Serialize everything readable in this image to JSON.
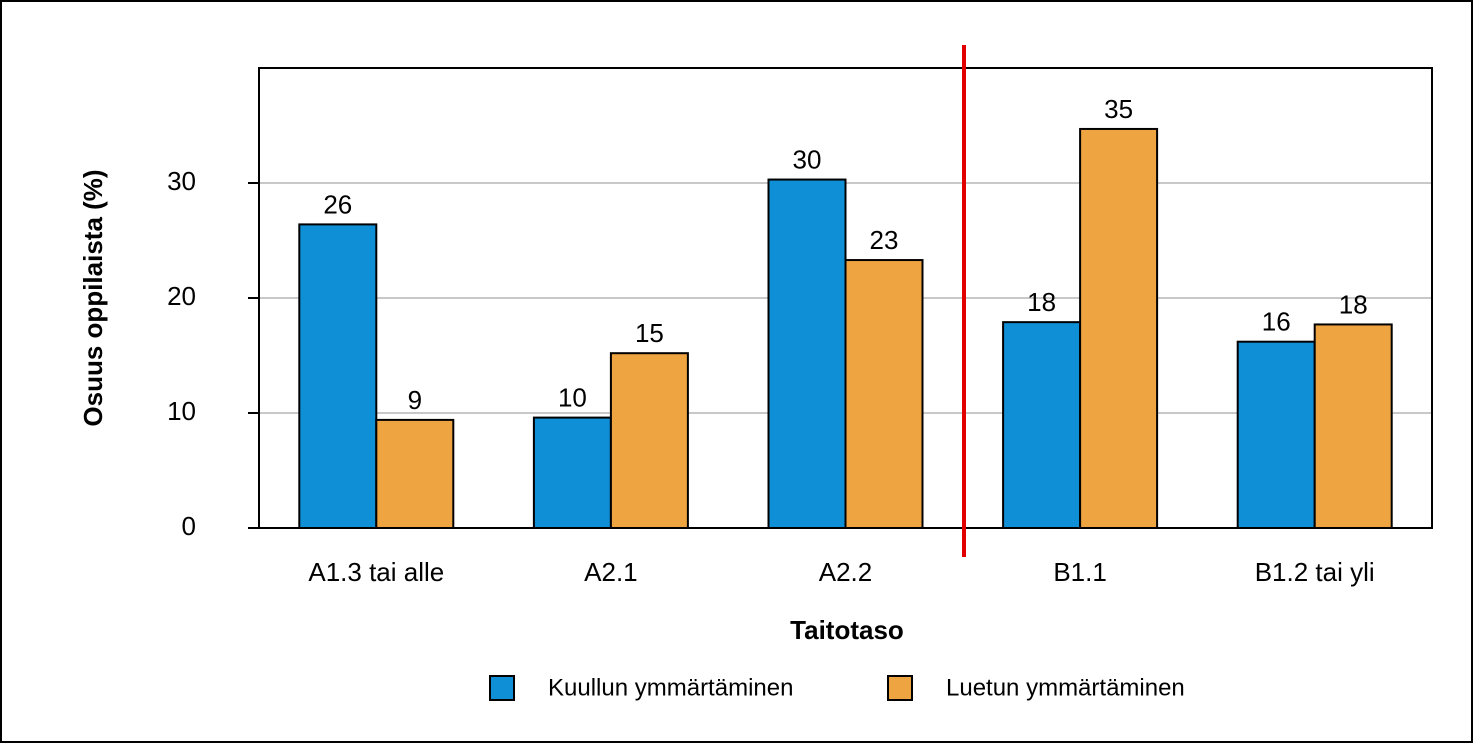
{
  "chart_data": {
    "type": "bar",
    "x_label": "Taitotaso",
    "y_label": "Osuus oppilaista (%)",
    "categories": [
      "A1.3 tai alle",
      "A2.1",
      "A2.2",
      "B1.1",
      "B1.2 tai yli"
    ],
    "series": [
      {
        "name": "Kuullun ymmärtäminen",
        "color": "#0f8fd6",
        "values": [
          26.4,
          9.6,
          30.3,
          17.9,
          16.2
        ],
        "value_labels": [
          "26",
          "10",
          "30",
          "18",
          "16"
        ]
      },
      {
        "name": "Luetun ymmärtäminen",
        "color": "#eea441",
        "values": [
          9.4,
          15.2,
          23.3,
          34.7,
          17.7
        ],
        "value_labels": [
          "9",
          "15",
          "23",
          "35",
          "18"
        ]
      }
    ],
    "ylim": [
      0,
      40
    ],
    "yticks": [
      0,
      10,
      20,
      30
    ],
    "grid": true,
    "legend": "bottom"
  }
}
